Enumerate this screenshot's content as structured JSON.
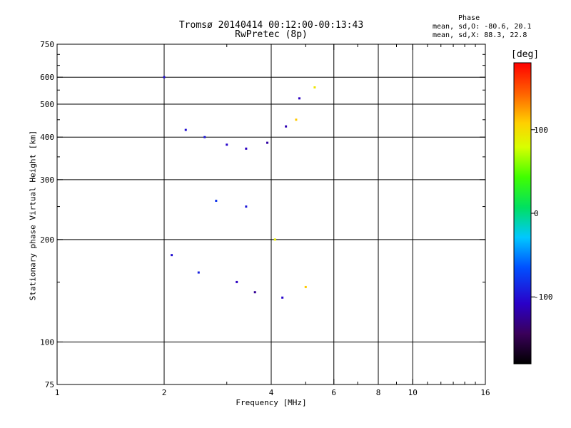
{
  "chart_data": {
    "type": "scatter",
    "title": "Tromsø 20140414 00:12:00-00:13:43",
    "subtitle": "RwPretec (8p)",
    "xlabel": "Frequency [MHz]",
    "ylabel": "Stationary phase Virtual Height [km]",
    "xscale": "log",
    "yscale": "log",
    "xlim": [
      1,
      16
    ],
    "ylim": [
      75,
      750
    ],
    "x_ticks": [
      1,
      2,
      4,
      6,
      8,
      10,
      16
    ],
    "x_tick_labels": [
      "1",
      "2",
      "4",
      "6",
      "8",
      "10",
      "16"
    ],
    "x_minor_ticks": [
      3,
      5,
      7,
      9,
      11,
      12,
      13,
      14,
      15
    ],
    "x_gridlines": [
      2,
      4,
      6,
      8,
      10
    ],
    "y_ticks": [
      75,
      100,
      200,
      300,
      400,
      500,
      600,
      750
    ],
    "y_tick_labels": [
      "75",
      "100",
      "200",
      "300",
      "400",
      "500",
      "600",
      "750"
    ],
    "y_gridlines": [
      100,
      200,
      300,
      400,
      500,
      600
    ],
    "grid": true,
    "stats": {
      "heading": "Phase",
      "line_o": "mean, sd,O: -80.6, 20.1",
      "line_x": "mean, sd,X:  88.3, 22.8"
    },
    "colorbar": {
      "label": "[deg]",
      "range": [
        -180,
        180
      ],
      "ticks": [
        100,
        0,
        -100
      ],
      "tick_labels": [
        "100",
        "0",
        "-100"
      ],
      "colormap": "rainbow"
    },
    "series": [
      {
        "points": [
          [
            2.3,
            420,
            -100
          ],
          [
            2.6,
            400,
            -95
          ],
          [
            3.0,
            380,
            -105
          ],
          [
            3.4,
            370,
            -110
          ],
          [
            3.9,
            385,
            -120
          ],
          [
            4.4,
            430,
            -115
          ],
          [
            4.8,
            520,
            -110
          ],
          [
            2.0,
            600,
            -100
          ],
          [
            2.1,
            180,
            -100
          ],
          [
            2.5,
            160,
            -90
          ],
          [
            3.2,
            150,
            -110
          ],
          [
            3.6,
            140,
            -125
          ],
          [
            4.3,
            135,
            -105
          ],
          [
            2.8,
            260,
            -80
          ],
          [
            3.4,
            250,
            -95
          ],
          [
            4.7,
            450,
            110
          ],
          [
            5.3,
            560,
            95
          ],
          [
            5.0,
            145,
            110
          ],
          [
            4.1,
            200,
            90
          ]
        ]
      }
    ]
  }
}
